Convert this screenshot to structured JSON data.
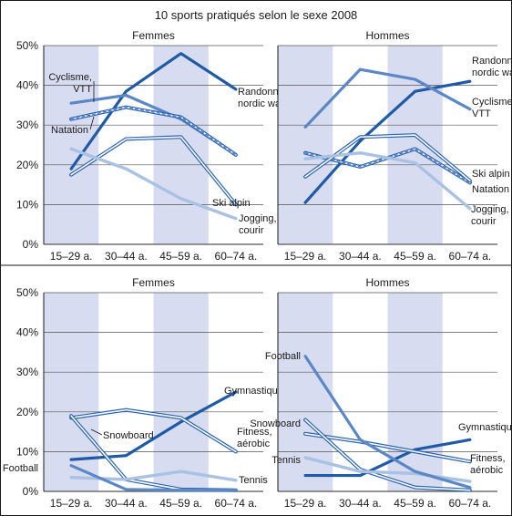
{
  "title": "10 sports pratiqués selon le sexe 2008",
  "colors": {
    "band": "#d8dcf0",
    "grid": "#555555",
    "frame": "#1a1a1a",
    "dark": "#1f5aa6",
    "mid": "#5a87c5",
    "light": "#a9c1e3",
    "outline": "#2b64b4"
  },
  "chart_data": [
    {
      "type": "line",
      "title": "Femmes",
      "categories": [
        "15–29 a.",
        "30–44 a.",
        "45–59 a.",
        "60–74 a."
      ],
      "ylim": [
        0,
        50
      ],
      "yticks": [
        "0%",
        "10%",
        "20%",
        "30%",
        "40%",
        "50%"
      ],
      "series": [
        {
          "name": "Randonnée, nordic walking",
          "values": [
            19,
            38.5,
            48,
            39
          ],
          "style": "dark"
        },
        {
          "name": "Cyclisme, VTT",
          "values": [
            35.5,
            37.5,
            31.5,
            22.5
          ],
          "style": "mid"
        },
        {
          "name": "Natation",
          "values": [
            31.5,
            34.5,
            32,
            22.5
          ],
          "style": "double-dashed"
        },
        {
          "name": "Ski alpin",
          "values": [
            17.5,
            26.5,
            27,
            10
          ],
          "style": "double"
        },
        {
          "name": "Jogging, courir",
          "values": [
            24,
            19,
            11.5,
            6.5
          ],
          "style": "light"
        }
      ],
      "labels": [
        {
          "text": "Randonnée,",
          "series": 0,
          "pos": "right"
        },
        {
          "text": "nordic walking",
          "series": 0,
          "pos": "right2"
        },
        {
          "text": "Cyclisme,",
          "series": 1,
          "pos": "left"
        },
        {
          "text": "VTT",
          "series": 1,
          "pos": "left2"
        },
        {
          "text": "Natation",
          "series": 2,
          "pos": "left"
        },
        {
          "text": "Ski alpin",
          "series": 3,
          "pos": "right"
        },
        {
          "text": "Jogging,",
          "series": 4,
          "pos": "right"
        },
        {
          "text": "courir",
          "series": 4,
          "pos": "right2"
        }
      ]
    },
    {
      "type": "line",
      "title": "Hommes",
      "categories": [
        "15–29 a.",
        "30–44 a.",
        "45–59 a.",
        "60–74 a."
      ],
      "ylim": [
        0,
        50
      ],
      "yticks": [
        "0%",
        "10%",
        "20%",
        "30%",
        "40%",
        "50%"
      ],
      "series": [
        {
          "name": "Randonnée, nordic walking",
          "values": [
            10.5,
            26,
            38.5,
            41
          ],
          "style": "dark"
        },
        {
          "name": "Cyclisme, VTT",
          "values": [
            29.5,
            44,
            41.5,
            34
          ],
          "style": "mid"
        },
        {
          "name": "Natation",
          "values": [
            23,
            19.5,
            24,
            15.5
          ],
          "style": "double-dashed"
        },
        {
          "name": "Ski alpin",
          "values": [
            17,
            27,
            27.5,
            16
          ],
          "style": "double"
        },
        {
          "name": "Jogging, courir",
          "values": [
            21.5,
            23,
            20.5,
            9
          ],
          "style": "light"
        }
      ],
      "labels": [
        {
          "text": "Randonnée,",
          "series": 0,
          "pos": "right"
        },
        {
          "text": "nordic walking",
          "series": 0,
          "pos": "right2"
        },
        {
          "text": "Cyclisme,",
          "series": 1,
          "pos": "right"
        },
        {
          "text": "VTT",
          "series": 1,
          "pos": "right2"
        },
        {
          "text": "Ski alpin",
          "series": 3,
          "pos": "right"
        },
        {
          "text": "Natation",
          "series": 2,
          "pos": "right"
        },
        {
          "text": "Jogging,",
          "series": 4,
          "pos": "right"
        },
        {
          "text": "courir",
          "series": 4,
          "pos": "right2"
        }
      ]
    },
    {
      "type": "line",
      "title": "Femmes",
      "categories": [
        "15–29 a.",
        "30–44 a.",
        "45–59 a.",
        "60–74 a."
      ],
      "ylim": [
        0,
        50
      ],
      "yticks": [
        "0%",
        "10%",
        "20%",
        "30%",
        "40%",
        "50%"
      ],
      "series": [
        {
          "name": "Gymnastique",
          "values": [
            8,
            9,
            17.5,
            25
          ],
          "style": "dark"
        },
        {
          "name": "Fitness, aérobic",
          "values": [
            18.5,
            20.5,
            18.5,
            10
          ],
          "style": "double"
        },
        {
          "name": "Snowboard",
          "values": [
            19,
            3,
            0.5,
            0.3
          ],
          "style": "double"
        },
        {
          "name": "Tennis",
          "values": [
            3.5,
            3,
            5,
            2.8
          ],
          "style": "light"
        },
        {
          "name": "Football",
          "values": [
            6.5,
            0.5,
            0.3,
            0.3
          ],
          "style": "mid"
        }
      ],
      "labels": [
        {
          "text": "Gymnastique",
          "series": 0,
          "pos": "right"
        },
        {
          "text": "Fitness,",
          "series": 1,
          "pos": "right"
        },
        {
          "text": "aérobic",
          "series": 1,
          "pos": "right2"
        },
        {
          "text": "Snowboard",
          "series": 2,
          "pos": "inline"
        },
        {
          "text": "Tennis",
          "series": 3,
          "pos": "right"
        },
        {
          "text": "Football",
          "series": 4,
          "pos": "left"
        }
      ]
    },
    {
      "type": "line",
      "title": "Hommes",
      "categories": [
        "15–29 a.",
        "30–44 a.",
        "45–59 a.",
        "60–74 a."
      ],
      "ylim": [
        0,
        50
      ],
      "yticks": [
        "0%",
        "10%",
        "20%",
        "30%",
        "40%",
        "50%"
      ],
      "series": [
        {
          "name": "Gymnastique",
          "values": [
            4,
            4,
            10.5,
            13
          ],
          "style": "dark"
        },
        {
          "name": "Fitness, aérobic",
          "values": [
            14.5,
            12.5,
            10,
            7.5
          ],
          "style": "double"
        },
        {
          "name": "Snowboard",
          "values": [
            18,
            5.5,
            1,
            0.3
          ],
          "style": "double"
        },
        {
          "name": "Tennis",
          "values": [
            8.5,
            5,
            4.5,
            2.5
          ],
          "style": "light"
        },
        {
          "name": "Football",
          "values": [
            34,
            13,
            5,
            1
          ],
          "style": "mid"
        }
      ],
      "labels": [
        {
          "text": "Football",
          "series": 4,
          "pos": "left"
        },
        {
          "text": "Snowboard",
          "series": 2,
          "pos": "left"
        },
        {
          "text": "Gymnastique",
          "series": 0,
          "pos": "right"
        },
        {
          "text": "Tennis",
          "series": 3,
          "pos": "left"
        },
        {
          "text": "Fitness,",
          "series": 1,
          "pos": "right"
        },
        {
          "text": "aérobic",
          "series": 1,
          "pos": "right2"
        }
      ]
    }
  ]
}
